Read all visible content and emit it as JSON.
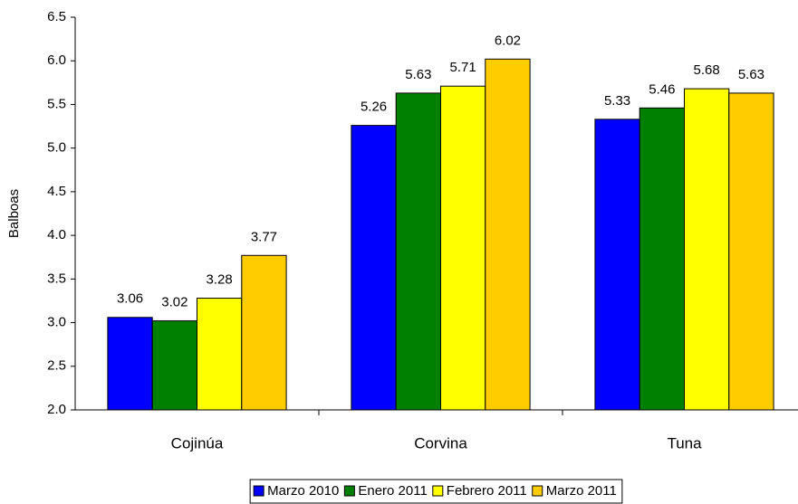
{
  "chart_data": {
    "type": "bar",
    "y_label": "Balboas",
    "categories": [
      "Cojinúa",
      "Corvina",
      "Tuna"
    ],
    "series": [
      {
        "name": "Marzo 2010",
        "color": "#0000ff",
        "values": [
          3.06,
          5.26,
          5.33
        ]
      },
      {
        "name": "Enero 2011",
        "color": "#008000",
        "values": [
          3.02,
          5.63,
          5.46
        ]
      },
      {
        "name": "Febrero 2011",
        "color": "#ffff00",
        "values": [
          3.28,
          5.71,
          5.68
        ]
      },
      {
        "name": "Marzo 2011",
        "color": "#ffcc00",
        "values": [
          3.77,
          6.02,
          5.63
        ]
      }
    ],
    "ylim": [
      2.0,
      6.5
    ],
    "yticks": [
      {
        "value": 2,
        "label": "2.0"
      },
      2.5,
      {
        "value": 3,
        "label": "3.0"
      },
      3.5,
      {
        "value": 4,
        "label": "4.0"
      },
      4.5,
      {
        "value": 5,
        "label": "5.0"
      },
      5.5,
      {
        "value": 6,
        "label": "6.0"
      },
      6.5
    ],
    "legend": "bottom"
  }
}
